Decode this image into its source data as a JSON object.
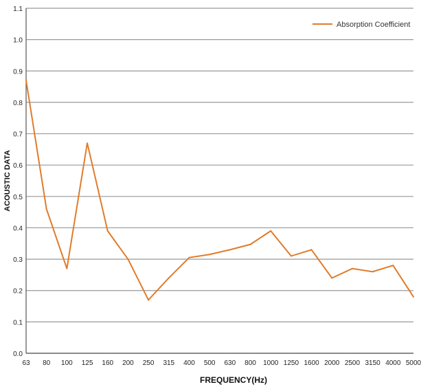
{
  "chart_data": {
    "type": "line",
    "title": "",
    "xlabel": "FREQUENCY(Hz)",
    "ylabel": "ACOUSTIC DATA",
    "ylim": [
      0,
      1.1
    ],
    "yticks": [
      "0.0",
      "0.1",
      "0.2",
      "0.3",
      "0.4",
      "0.5",
      "0.6",
      "0.7",
      "0.8",
      "0.9",
      "1.0",
      "1.1"
    ],
    "categories": [
      "63",
      "80",
      "100",
      "125",
      "160",
      "200",
      "250",
      "315",
      "400",
      "500",
      "630",
      "800",
      "1000",
      "1250",
      "1600",
      "2000",
      "2500",
      "3150",
      "4000",
      "5000"
    ],
    "series": [
      {
        "name": "Absorption Coefficient",
        "color": "#E07B2A",
        "values": [
          0.87,
          0.46,
          0.27,
          0.67,
          0.39,
          0.3,
          0.17,
          0.24,
          0.305,
          0.315,
          0.33,
          0.347,
          0.39,
          0.31,
          0.33,
          0.24,
          0.27,
          0.26,
          0.28,
          0.18
        ]
      }
    ],
    "grid": true,
    "legend": "top-right"
  }
}
